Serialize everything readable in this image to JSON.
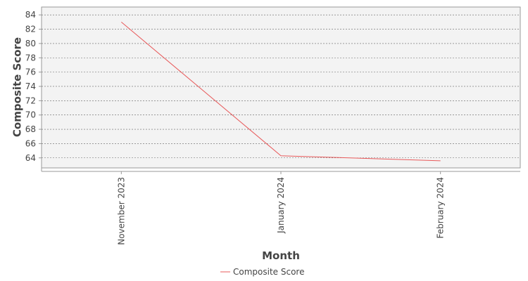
{
  "chart_data": {
    "type": "line",
    "x_label": "Month",
    "y_label": "Composite Score",
    "categories": [
      "November 2023",
      "January 2024",
      "February 2024"
    ],
    "series": [
      {
        "name": "Composite Score",
        "color": "#e8595a",
        "values": [
          83.0,
          64.3,
          63.6
        ]
      }
    ],
    "ylim": [
      62.6,
      85.1
    ],
    "yticks": [
      64,
      66,
      68,
      70,
      72,
      74,
      76,
      78,
      80,
      82,
      84
    ],
    "grid": true,
    "legend": "bottom"
  }
}
